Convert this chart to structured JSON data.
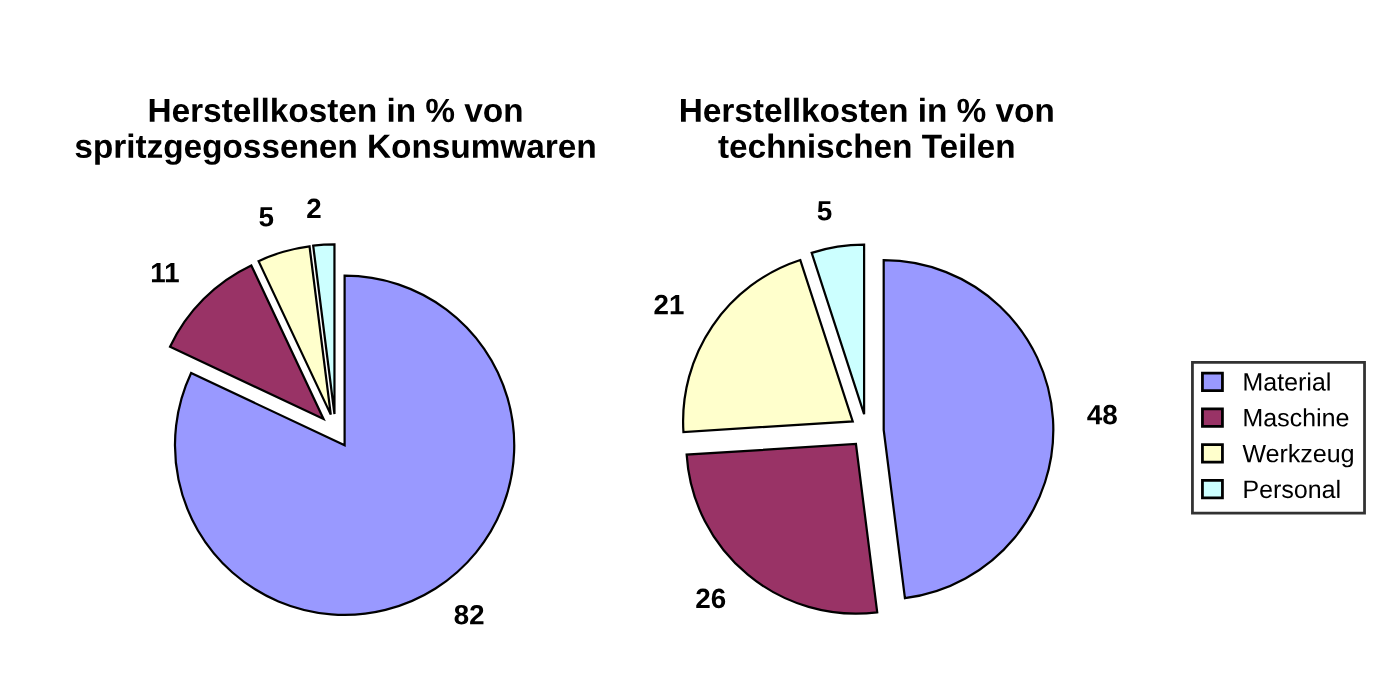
{
  "chart_data": [
    {
      "type": "pie",
      "title": "Herstellkosten in % von\nspritzgegossenen Konsumwaren",
      "categories": [
        "Material",
        "Maschine",
        "Werkzeug",
        "Personal"
      ],
      "values": [
        82,
        11,
        5,
        2
      ],
      "colors": [
        "#9999ff",
        "#993366",
        "#ffffcc",
        "#ccffff"
      ],
      "data_labels": true,
      "legend": "right"
    },
    {
      "type": "pie",
      "title": "Herstellkosten in % von\ntechnischen Teilen",
      "categories": [
        null,
        null,
        null,
        null
      ],
      "values": [
        48,
        26,
        21,
        5
      ],
      "colors": [
        "#9999ff",
        "#993366",
        "#ffffcc",
        "#ccffff"
      ],
      "data_labels": true
    }
  ]
}
